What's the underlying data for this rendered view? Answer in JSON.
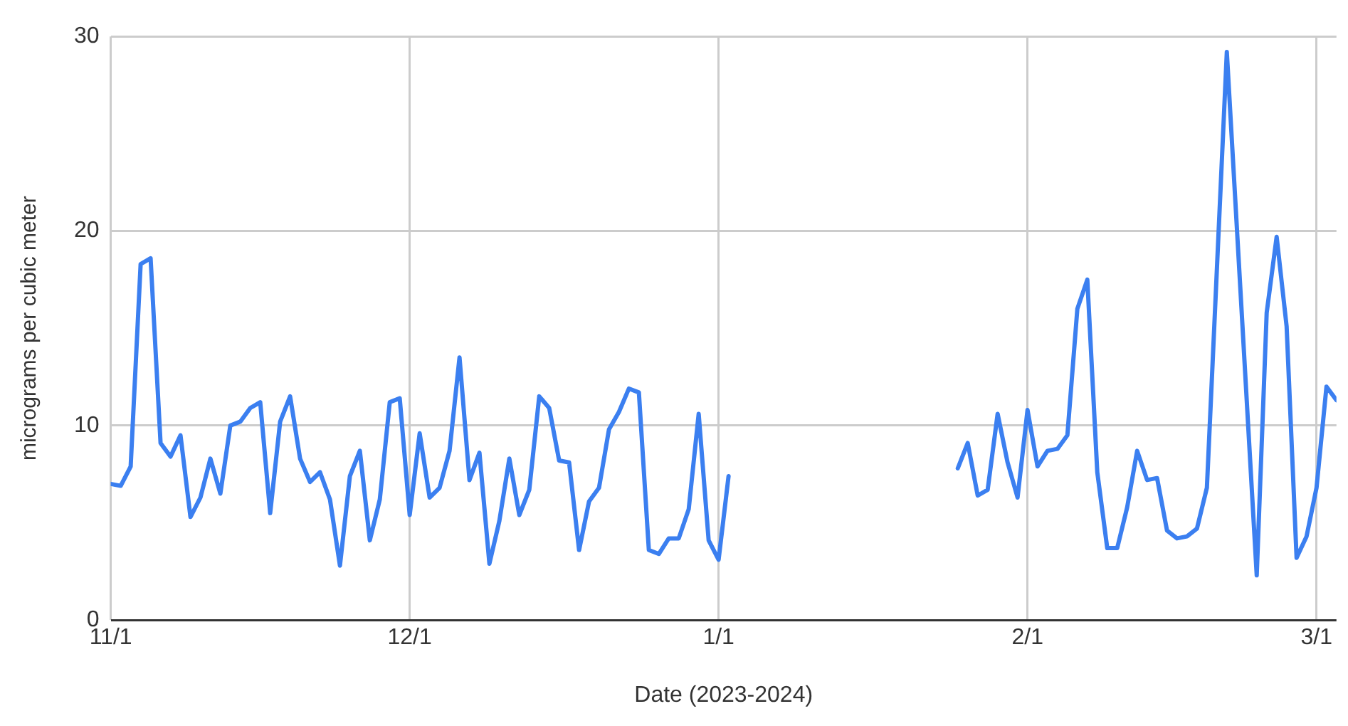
{
  "chart_data": {
    "type": "line",
    "xlabel": "Date (2023-2024)",
    "ylabel": "micrograms per cubic meter",
    "x": [
      "2023-11-01",
      "2023-11-02",
      "2023-11-03",
      "2023-11-04",
      "2023-11-05",
      "2023-11-06",
      "2023-11-07",
      "2023-11-08",
      "2023-11-09",
      "2023-11-10",
      "2023-11-11",
      "2023-11-12",
      "2023-11-13",
      "2023-11-14",
      "2023-11-15",
      "2023-11-16",
      "2023-11-17",
      "2023-11-18",
      "2023-11-19",
      "2023-11-20",
      "2023-11-21",
      "2023-11-22",
      "2023-11-23",
      "2023-11-24",
      "2023-11-25",
      "2023-11-26",
      "2023-11-27",
      "2023-11-28",
      "2023-11-29",
      "2023-11-30",
      "2023-12-01",
      "2023-12-02",
      "2023-12-03",
      "2023-12-04",
      "2023-12-05",
      "2023-12-06",
      "2023-12-07",
      "2023-12-08",
      "2023-12-09",
      "2023-12-10",
      "2023-12-11",
      "2023-12-12",
      "2023-12-13",
      "2023-12-14",
      "2023-12-15",
      "2023-12-16",
      "2023-12-17",
      "2023-12-18",
      "2023-12-19",
      "2023-12-20",
      "2023-12-21",
      "2023-12-22",
      "2023-12-23",
      "2023-12-24",
      "2023-12-25",
      "2023-12-26",
      "2023-12-27",
      "2023-12-28",
      "2023-12-29",
      "2023-12-30",
      "2023-12-31",
      "2024-01-01",
      "2024-01-02",
      "2024-01-12",
      "2024-01-25",
      "2024-01-26",
      "2024-01-27",
      "2024-01-28",
      "2024-01-29",
      "2024-01-30",
      "2024-01-31",
      "2024-02-01",
      "2024-02-02",
      "2024-02-03",
      "2024-02-04",
      "2024-02-05",
      "2024-02-06",
      "2024-02-07",
      "2024-02-08",
      "2024-02-09",
      "2024-02-10",
      "2024-02-11",
      "2024-02-12",
      "2024-02-13",
      "2024-02-14",
      "2024-02-15",
      "2024-02-16",
      "2024-02-17",
      "2024-02-18",
      "2024-02-19",
      "2024-02-21",
      "2024-02-24",
      "2024-02-25",
      "2024-02-26",
      "2024-02-27",
      "2024-02-28",
      "2024-02-29",
      "2024-03-01",
      "2024-03-02",
      "2024-03-03"
    ],
    "series": [
      {
        "color": "#3b7ff0",
        "values": [
          7.0,
          6.9,
          7.9,
          18.3,
          18.6,
          9.1,
          8.4,
          9.5,
          5.3,
          6.3,
          8.3,
          6.5,
          10.0,
          10.2,
          10.9,
          11.2,
          5.5,
          10.2,
          11.5,
          8.3,
          7.1,
          7.6,
          6.2,
          2.8,
          7.4,
          8.7,
          4.1,
          6.2,
          11.2,
          11.4,
          5.4,
          9.6,
          6.3,
          6.8,
          8.7,
          13.5,
          7.2,
          8.6,
          2.9,
          5.1,
          8.3,
          5.4,
          6.7,
          11.5,
          10.9,
          8.2,
          8.1,
          3.6,
          6.1,
          6.8,
          9.8,
          10.7,
          11.9,
          11.7,
          3.6,
          3.4,
          4.2,
          4.2,
          5.7,
          10.6,
          4.1,
          3.1,
          7.4,
          null,
          7.8,
          9.1,
          6.4,
          6.7,
          10.6,
          8.1,
          6.3,
          10.8,
          7.9,
          8.7,
          8.8,
          9.5,
          16.0,
          17.5,
          7.6,
          3.7,
          3.7,
          5.8,
          8.7,
          7.2,
          7.3,
          4.6,
          4.2,
          4.3,
          4.7,
          6.8,
          29.2,
          2.3,
          15.8,
          19.7,
          15.1,
          3.2,
          4.3,
          6.8,
          12.0,
          11.3
        ]
      }
    ],
    "xlim": [
      "2023-11-01",
      "2024-03-03"
    ],
    "xticks": [
      {
        "value": "2023-11-01",
        "label": "11/1"
      },
      {
        "value": "2023-12-01",
        "label": "12/1"
      },
      {
        "value": "2024-01-01",
        "label": "1/1"
      },
      {
        "value": "2024-02-01",
        "label": "2/1"
      },
      {
        "value": "2024-03-01",
        "label": "3/1"
      }
    ],
    "ylim": [
      0,
      30
    ],
    "yticks": [
      0,
      10,
      20,
      30
    ],
    "grid": true,
    "legend": false,
    "marker": "none",
    "line_style": "solid"
  }
}
